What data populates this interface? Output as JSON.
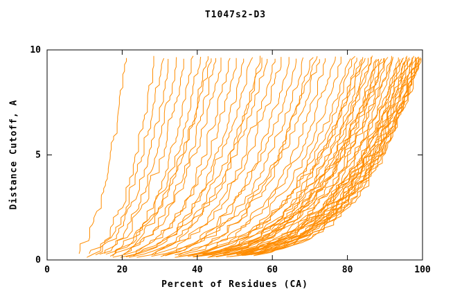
{
  "chart_data": {
    "type": "line",
    "title": "T1047s2-D3",
    "xlabel": "Percent of Residues (CA)",
    "ylabel": "Distance Cutoff, A",
    "xlim": [
      0,
      100
    ],
    "ylim": [
      0,
      10
    ],
    "x_ticks": [
      0,
      20,
      40,
      60,
      80,
      100
    ],
    "y_ticks": [
      0,
      5,
      10
    ],
    "grid": false,
    "legend": "none",
    "line_color": "#ff8c00",
    "axis_color": "#000000",
    "curve_format": "each curve = [percent_at_cutoff0, percent_at_cutoff10, shape_exponent, seed]; x(y) = x0 + (x10 - x0) * (y/10)^p",
    "curves": [
      [
        5,
        21,
        0.45,
        101
      ],
      [
        6,
        29,
        0.4,
        102
      ],
      [
        7,
        31,
        0.42,
        103
      ],
      [
        6,
        33,
        0.38,
        104
      ],
      [
        8,
        35,
        0.4,
        105
      ],
      [
        6,
        37,
        0.35,
        106
      ],
      [
        7,
        39,
        0.33,
        107
      ],
      [
        6,
        41,
        0.32,
        108
      ],
      [
        8,
        43,
        0.34,
        109
      ],
      [
        7,
        45,
        0.3,
        110
      ],
      [
        6,
        47,
        0.31,
        111
      ],
      [
        9,
        49,
        0.29,
        112
      ],
      [
        7,
        51,
        0.3,
        113
      ],
      [
        8,
        53,
        0.28,
        114
      ],
      [
        6,
        55,
        0.29,
        115
      ],
      [
        9,
        57,
        0.27,
        116
      ],
      [
        7,
        59,
        0.28,
        117
      ],
      [
        8,
        61,
        0.26,
        118
      ],
      [
        7,
        63,
        0.27,
        119
      ],
      [
        9,
        65,
        0.25,
        120
      ],
      [
        8,
        67,
        0.26,
        121
      ],
      [
        7,
        69,
        0.25,
        122
      ],
      [
        9,
        71,
        0.24,
        123
      ],
      [
        8,
        73,
        0.25,
        124
      ],
      [
        7,
        75,
        0.23,
        125
      ],
      [
        9,
        77,
        0.24,
        126
      ],
      [
        8,
        79,
        0.23,
        127
      ],
      [
        7,
        81,
        0.22,
        128
      ],
      [
        8,
        82,
        0.23,
        129
      ],
      [
        9,
        83,
        0.21,
        130
      ],
      [
        8,
        84,
        0.22,
        131
      ],
      [
        7,
        85,
        0.21,
        132
      ],
      [
        9,
        86,
        0.2,
        133
      ],
      [
        8,
        87,
        0.21,
        134
      ],
      [
        10,
        88,
        0.2,
        135
      ],
      [
        9,
        89,
        0.21,
        136
      ],
      [
        8,
        90,
        0.19,
        137
      ],
      [
        10,
        91,
        0.2,
        138
      ],
      [
        9,
        92,
        0.19,
        139
      ],
      [
        11,
        93,
        0.2,
        140
      ],
      [
        10,
        94,
        0.19,
        141
      ],
      [
        9,
        95,
        0.18,
        142
      ],
      [
        11,
        95,
        0.21,
        143
      ],
      [
        10,
        96,
        0.19,
        144
      ],
      [
        12,
        96,
        0.22,
        145
      ],
      [
        9,
        97,
        0.18,
        146
      ],
      [
        11,
        97,
        0.2,
        147
      ],
      [
        10,
        98,
        0.19,
        148
      ],
      [
        12,
        98,
        0.21,
        149
      ],
      [
        11,
        99,
        0.18,
        150
      ],
      [
        13,
        99,
        0.2,
        151
      ],
      [
        10,
        100,
        0.19,
        152
      ],
      [
        12,
        100,
        0.21,
        153
      ],
      [
        11,
        100,
        0.18,
        154
      ],
      [
        13,
        100,
        0.22,
        155
      ],
      [
        14,
        100,
        0.2,
        156
      ],
      [
        12,
        99,
        0.23,
        157
      ],
      [
        13,
        98,
        0.24,
        158
      ],
      [
        14,
        97,
        0.25,
        159
      ],
      [
        12,
        95,
        0.26,
        160
      ],
      [
        13,
        93,
        0.27,
        161
      ],
      [
        14,
        91,
        0.28,
        162
      ],
      [
        12,
        89,
        0.24,
        163
      ],
      [
        13,
        87,
        0.26,
        164
      ],
      [
        11,
        85,
        0.27,
        165
      ],
      [
        6,
        44,
        0.36,
        166
      ],
      [
        7,
        58,
        0.31,
        167
      ],
      [
        8,
        72,
        0.27,
        168
      ],
      [
        9,
        90,
        0.22,
        169
      ],
      [
        10,
        99,
        0.2,
        170
      ]
    ]
  }
}
